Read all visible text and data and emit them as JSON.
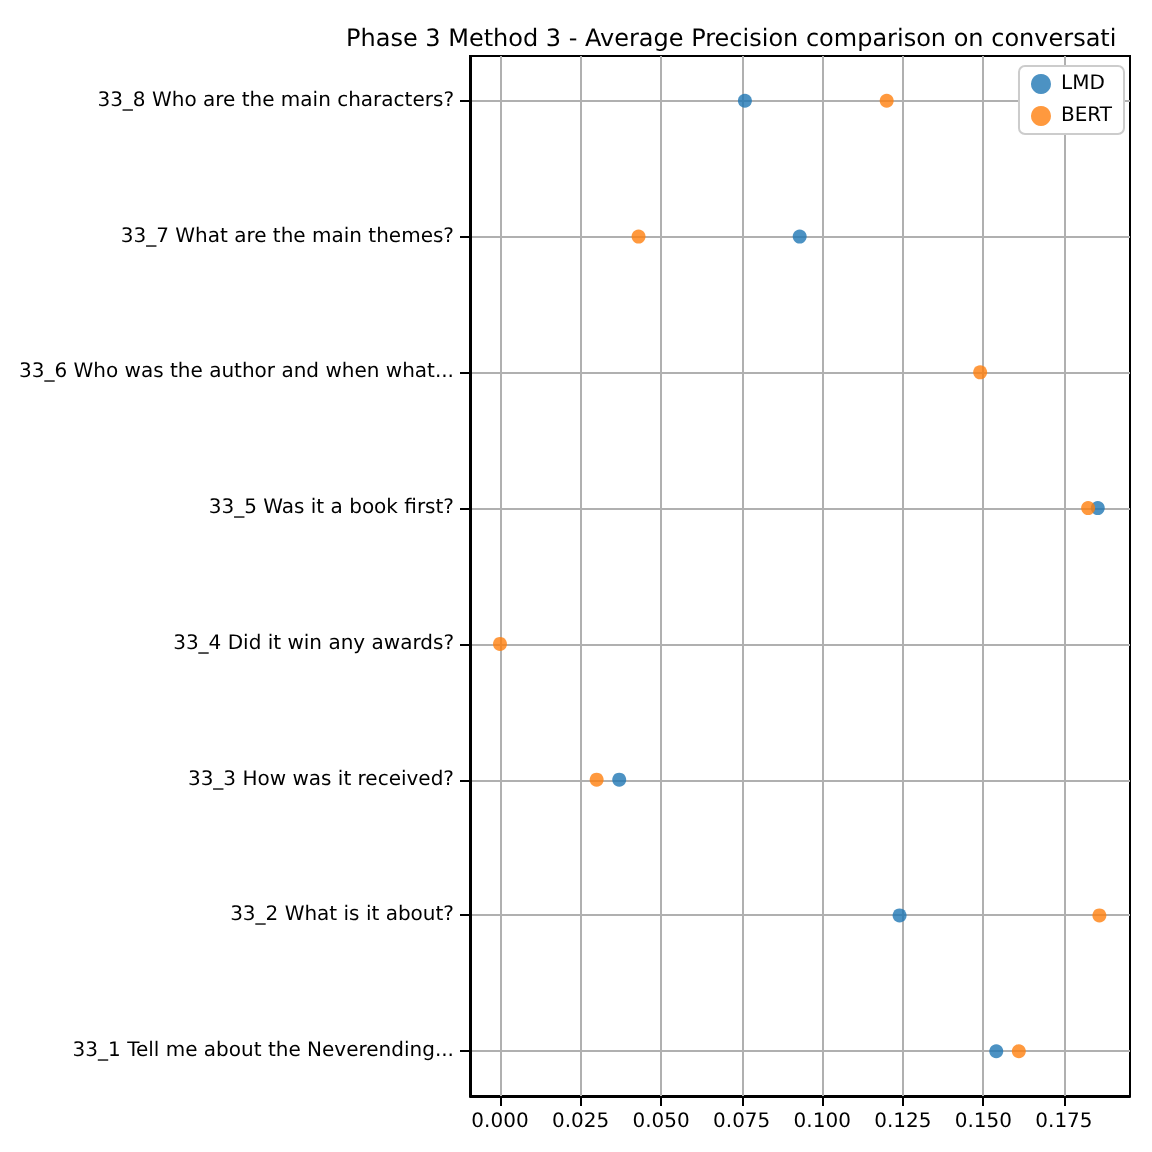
{
  "chart_data": {
    "type": "scatter",
    "title": "Phase 3 Method 3 - Average Precision comparison on conversati",
    "categories": [
      "33_8 Who are the main characters?",
      "33_7 What are the main themes?",
      "33_6 Who was the author and when what...",
      "33_5 Was it a book first?",
      "33_4 Did it win any awards?",
      "33_3 How was it received?",
      "33_2 What is it about?",
      "33_1 Tell me about the Neverending..."
    ],
    "orientation": "horizontal",
    "series": [
      {
        "name": "LMD",
        "color": "#1f77b4",
        "values": [
          0.076,
          0.093,
          null,
          0.1855,
          null,
          0.037,
          0.124,
          0.154
        ]
      },
      {
        "name": "BERT",
        "color": "#ff7f0e",
        "values": [
          0.12,
          0.043,
          0.149,
          0.1825,
          0,
          0.03,
          0.186,
          0.161
        ]
      }
    ],
    "xlim": [
      -0.0093,
      0.1955
    ],
    "xticks": [
      {
        "value": 0,
        "label": "0.000"
      },
      {
        "value": 0.025,
        "label": "0.025"
      },
      {
        "value": 0.05,
        "label": "0.050"
      },
      {
        "value": 0.075,
        "label": "0.075"
      },
      {
        "value": 0.1,
        "label": "0.100"
      },
      {
        "value": 0.125,
        "label": "0.125"
      },
      {
        "value": 0.15,
        "label": "0.150"
      },
      {
        "value": 0.175,
        "label": "0.175"
      }
    ],
    "grid": true,
    "legend": "top right",
    "marker": "circle"
  }
}
